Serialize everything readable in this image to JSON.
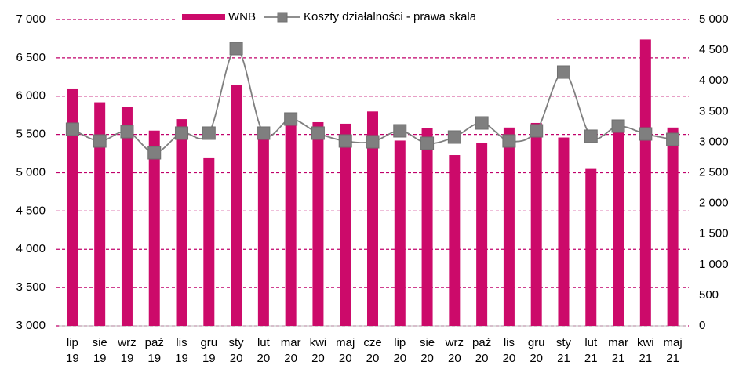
{
  "chart_data": {
    "type": "bar",
    "categories": [
      "lip\n19",
      "sie\n19",
      "wrz\n19",
      "paź\n19",
      "lis\n19",
      "gru\n19",
      "sty\n20",
      "lut\n20",
      "mar\n20",
      "kwi\n20",
      "maj\n20",
      "cze\n20",
      "lip\n20",
      "sie\n20",
      "wrz\n20",
      "paź\n20",
      "lis\n20",
      "gru\n20",
      "sty\n21",
      "lut\n21",
      "mar\n21",
      "kwi\n21",
      "maj\n21"
    ],
    "series": [
      {
        "name": "WNB",
        "type": "bar",
        "color": "#cc0a6a",
        "values": [
          6100,
          5920,
          5860,
          5550,
          5700,
          5190,
          6150,
          5500,
          5680,
          5660,
          5640,
          5800,
          5420,
          5580,
          5230,
          5390,
          5590,
          5650,
          5460,
          5050,
          5600,
          6740,
          5590
        ]
      },
      {
        "name": "Koszty działalności - prawa skala",
        "type": "line",
        "axis": "y2",
        "color": "#7f7f7f",
        "values": [
          3210,
          3018,
          3171,
          2826,
          3146,
          3146,
          4527,
          3146,
          3376,
          3146,
          3018,
          3005,
          3184,
          2980,
          3082,
          3312,
          3018,
          3184,
          4143,
          3095,
          3261,
          3133,
          3043
        ]
      }
    ],
    "ylim": [
      3000,
      7000
    ],
    "yticks": [
      {
        "value": 3000,
        "label": "3 000"
      },
      {
        "value": 3500,
        "label": "3 500"
      },
      {
        "value": 4000,
        "label": "4 000"
      },
      {
        "value": 4500,
        "label": "4 500"
      },
      {
        "value": 5000,
        "label": "5 000"
      },
      {
        "value": 5500,
        "label": "5 500"
      },
      {
        "value": 6000,
        "label": "6 000"
      },
      {
        "value": 6500,
        "label": "6 500"
      },
      {
        "value": 7000,
        "label": "7 000"
      }
    ],
    "y2lim": [
      0,
      5000
    ],
    "y2ticks": [
      0,
      500,
      {
        "value": 1000,
        "label": "1 000"
      },
      {
        "value": 1500,
        "label": "1 500"
      },
      {
        "value": 2000,
        "label": "2 000"
      },
      {
        "value": 2500,
        "label": "2 500"
      },
      {
        "value": 3000,
        "label": "3 000"
      },
      {
        "value": 3500,
        "label": "3 500"
      },
      {
        "value": 4000,
        "label": "4 000"
      },
      {
        "value": 4500,
        "label": "4 500"
      },
      {
        "value": 5000,
        "label": "5 000"
      }
    ],
    "grid": true,
    "grid_color": "#c0006a",
    "legend": "top"
  }
}
